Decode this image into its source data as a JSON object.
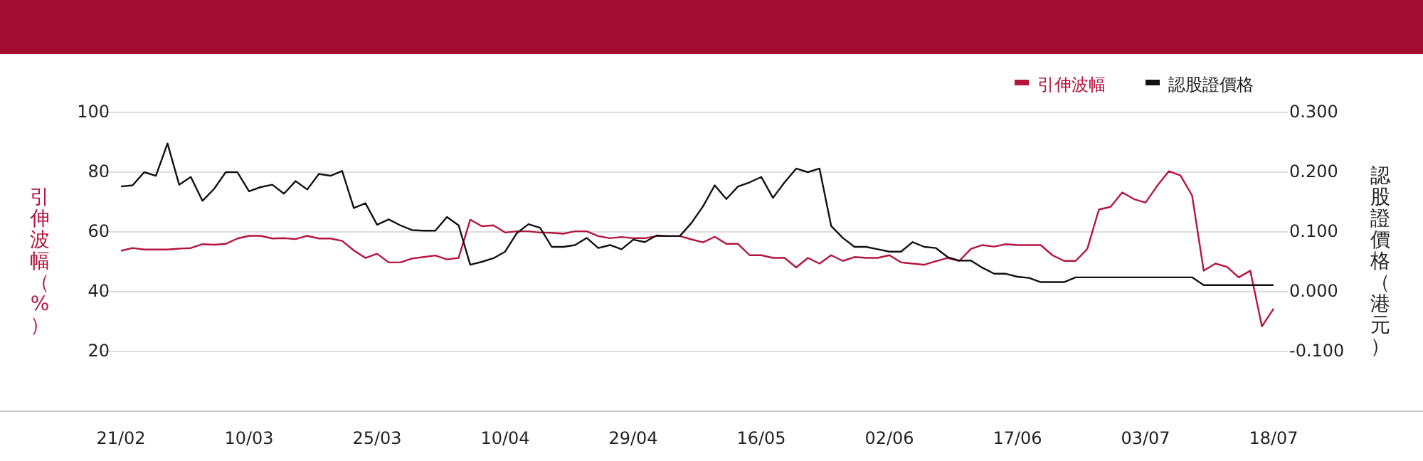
{
  "chart_data": {
    "type": "line",
    "categories": [
      "21/02",
      null,
      null,
      null,
      null,
      null,
      null,
      null,
      null,
      null,
      null,
      "10/03",
      null,
      null,
      null,
      null,
      null,
      null,
      null,
      null,
      null,
      null,
      "25/03",
      null,
      null,
      null,
      null,
      null,
      null,
      null,
      null,
      null,
      null,
      "10/04",
      null,
      null,
      null,
      null,
      null,
      null,
      null,
      null,
      null,
      null,
      "29/04",
      null,
      null,
      null,
      null,
      null,
      null,
      null,
      null,
      null,
      null,
      "16/05",
      null,
      null,
      null,
      null,
      null,
      null,
      null,
      null,
      null,
      null,
      "02/06",
      null,
      null,
      null,
      null,
      null,
      null,
      null,
      null,
      null,
      null,
      "17/06",
      null,
      null,
      null,
      null,
      null,
      null,
      null,
      null,
      null,
      null,
      "03/07",
      null,
      null,
      null,
      null,
      null,
      null,
      null,
      null,
      null,
      null,
      "18/07"
    ],
    "series": [
      {
        "name": "引伸波幅",
        "color": "#b5143f",
        "axis": "y",
        "values": [
          53.7,
          54.6,
          54.1,
          54.1,
          54.1,
          54.4,
          54.6,
          55.9,
          55.7,
          56.0,
          57.8,
          58.7,
          58.7,
          57.8,
          57.9,
          57.6,
          58.7,
          57.8,
          57.8,
          57.0,
          53.8,
          51.3,
          52.7,
          49.8,
          49.8,
          51.1,
          51.6,
          52.1,
          50.8,
          51.3,
          64.1,
          61.9,
          62.2,
          59.8,
          60.2,
          60.2,
          59.8,
          59.7,
          59.4,
          60.2,
          60.2,
          58.6,
          57.9,
          58.3,
          57.9,
          57.9,
          58.6,
          58.6,
          58.6,
          57.5,
          56.5,
          58.4,
          56.0,
          56.0,
          52.2,
          52.2,
          51.3,
          51.3,
          48.1,
          51.3,
          49.4,
          52.2,
          50.3,
          51.6,
          51.3,
          51.3,
          52.2,
          49.8,
          49.4,
          49.0,
          50.2,
          51.3,
          50.3,
          54.3,
          55.6,
          55.1,
          55.9,
          55.6,
          55.6,
          55.6,
          52.2,
          50.3,
          50.3,
          54.3,
          67.5,
          68.4,
          73.2,
          71.0,
          69.8,
          75.4,
          80.3,
          78.9,
          72.2,
          47.0,
          49.4,
          48.3,
          44.8,
          47.0,
          28.4,
          34.3
        ]
      },
      {
        "name": "認股證價格",
        "color": "#111111",
        "axis": "y2",
        "values": [
          0.176,
          0.178,
          0.2,
          0.194,
          0.248,
          0.179,
          0.192,
          0.152,
          0.172,
          0.2,
          0.2,
          0.168,
          0.175,
          0.179,
          0.164,
          0.185,
          0.171,
          0.197,
          0.194,
          0.202,
          0.14,
          0.148,
          0.112,
          0.121,
          0.111,
          0.103,
          0.102,
          0.102,
          0.125,
          0.111,
          0.045,
          0.05,
          0.056,
          0.067,
          0.098,
          0.113,
          0.107,
          0.075,
          0.075,
          0.078,
          0.09,
          0.073,
          0.078,
          0.071,
          0.087,
          0.083,
          0.094,
          0.093,
          0.093,
          0.115,
          0.143,
          0.178,
          0.155,
          0.176,
          0.183,
          0.192,
          0.157,
          0.183,
          0.206,
          0.2,
          0.206,
          0.11,
          0.09,
          0.075,
          0.075,
          0.071,
          0.067,
          0.067,
          0.083,
          0.075,
          0.073,
          0.058,
          0.052,
          0.052,
          0.04,
          0.03,
          0.03,
          0.025,
          0.023,
          0.016,
          0.016,
          0.016,
          0.024,
          0.024,
          0.024,
          0.024,
          0.024,
          0.024,
          0.024,
          0.024,
          0.024,
          0.024,
          0.024,
          0.011,
          0.011,
          0.011,
          0.011,
          0.011,
          0.011,
          0.011
        ]
      }
    ],
    "ylabel": "引伸波幅（%）",
    "y2label": "認股證價格（港元）",
    "ylim": [
      0,
      100
    ],
    "yticks": [
      20,
      40,
      60,
      80,
      100
    ],
    "y2lim": [
      -0.2,
      0.3
    ],
    "y2ticks": [
      {
        "value": -0.1,
        "label": "-0.100"
      },
      {
        "value": 0,
        "label": "0.000"
      },
      {
        "value": 0.1,
        "label": "0.100"
      },
      {
        "value": 0.2,
        "label": "0.200"
      },
      {
        "value": 0.3,
        "label": "0.300"
      }
    ],
    "grid": "y",
    "legend": "top right",
    "marker": "none",
    "line_style": "solid"
  }
}
